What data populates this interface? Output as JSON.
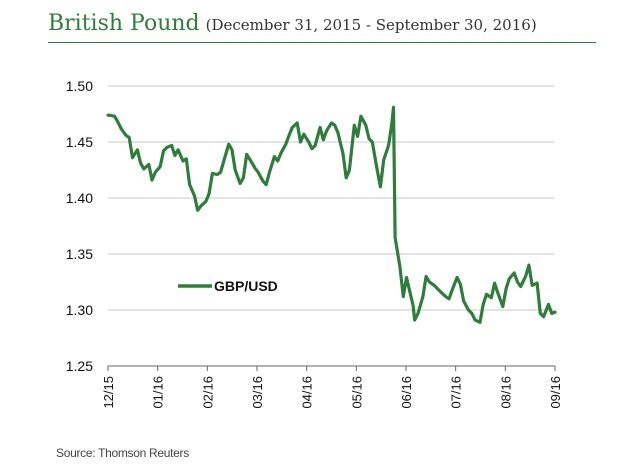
{
  "header": {
    "title": "British Pound",
    "subtitle": "(December 31, 2015 - September 30, 2016)"
  },
  "source": "Source: Thomson Reuters",
  "colors": {
    "series": "#2f7d3b",
    "title": "#2e7d3a",
    "grid": "#c8c8c8"
  },
  "chart_data": {
    "type": "line",
    "title": "",
    "xlabel": "",
    "ylabel": "",
    "ylim": [
      1.25,
      1.5
    ],
    "y_ticks": [
      "1.50",
      "1.45",
      "1.40",
      "1.35",
      "1.30",
      "1.25"
    ],
    "x_tick_labels": [
      "12/15",
      "01/16",
      "02/16",
      "03/16",
      "04/16",
      "05/16",
      "06/16",
      "07/16",
      "08/16",
      "09/16"
    ],
    "grid": "horizontal",
    "legend_position": "center-left",
    "series": [
      {
        "name": "GBP/USD",
        "x": [
          "2015-12-31",
          "2016-01-04",
          "2016-01-06",
          "2016-01-08",
          "2016-01-11",
          "2016-01-13",
          "2016-01-15",
          "2016-01-18",
          "2016-01-20",
          "2016-01-22",
          "2016-01-25",
          "2016-01-27",
          "2016-01-29",
          "2016-02-01",
          "2016-02-03",
          "2016-02-05",
          "2016-02-08",
          "2016-02-10",
          "2016-02-12",
          "2016-02-15",
          "2016-02-17",
          "2016-02-19",
          "2016-02-22",
          "2016-02-24",
          "2016-02-26",
          "2016-02-29",
          "2016-03-02",
          "2016-03-04",
          "2016-03-07",
          "2016-03-09",
          "2016-03-11",
          "2016-03-14",
          "2016-03-16",
          "2016-03-18",
          "2016-03-21",
          "2016-03-23",
          "2016-03-25",
          "2016-03-28",
          "2016-03-30",
          "2016-04-01",
          "2016-04-04",
          "2016-04-06",
          "2016-04-08",
          "2016-04-11",
          "2016-04-13",
          "2016-04-15",
          "2016-04-18",
          "2016-04-20",
          "2016-04-22",
          "2016-04-25",
          "2016-04-27",
          "2016-04-29",
          "2016-05-02",
          "2016-05-04",
          "2016-05-06",
          "2016-05-09",
          "2016-05-11",
          "2016-05-13",
          "2016-05-16",
          "2016-05-18",
          "2016-05-20",
          "2016-05-23",
          "2016-05-25",
          "2016-05-27",
          "2016-05-30",
          "2016-06-01",
          "2016-06-03",
          "2016-06-06",
          "2016-06-08",
          "2016-06-10",
          "2016-06-13",
          "2016-06-15",
          "2016-06-17",
          "2016-06-20",
          "2016-06-22",
          "2016-06-23",
          "2016-06-24",
          "2016-06-27",
          "2016-06-29",
          "2016-07-01",
          "2016-07-05",
          "2016-07-06",
          "2016-07-08",
          "2016-07-11",
          "2016-07-13",
          "2016-07-15",
          "2016-07-18",
          "2016-07-20",
          "2016-07-22",
          "2016-07-25",
          "2016-07-27",
          "2016-07-29",
          "2016-08-01",
          "2016-08-03",
          "2016-08-05",
          "2016-08-08",
          "2016-08-10",
          "2016-08-12",
          "2016-08-15",
          "2016-08-17",
          "2016-08-19",
          "2016-08-22",
          "2016-08-24",
          "2016-08-26",
          "2016-08-29",
          "2016-08-31",
          "2016-09-02",
          "2016-09-05",
          "2016-09-07",
          "2016-09-09",
          "2016-09-12",
          "2016-09-14",
          "2016-09-16",
          "2016-09-19",
          "2016-09-21",
          "2016-09-23",
          "2016-09-26",
          "2016-09-28",
          "2016-09-30"
        ],
        "y": [
          1.474,
          1.473,
          1.468,
          1.462,
          1.456,
          1.454,
          1.436,
          1.443,
          1.431,
          1.426,
          1.43,
          1.416,
          1.423,
          1.428,
          1.442,
          1.445,
          1.447,
          1.438,
          1.443,
          1.433,
          1.435,
          1.412,
          1.402,
          1.389,
          1.393,
          1.397,
          1.404,
          1.422,
          1.421,
          1.423,
          1.433,
          1.448,
          1.443,
          1.425,
          1.413,
          1.418,
          1.439,
          1.432,
          1.427,
          1.423,
          1.415,
          1.412,
          1.423,
          1.437,
          1.433,
          1.44,
          1.448,
          1.456,
          1.463,
          1.467,
          1.45,
          1.457,
          1.45,
          1.444,
          1.447,
          1.463,
          1.452,
          1.46,
          1.467,
          1.465,
          1.458,
          1.44,
          1.418,
          1.425,
          1.465,
          1.455,
          1.473,
          1.465,
          1.453,
          1.45,
          1.425,
          1.41,
          1.434,
          1.447,
          1.467,
          1.481,
          1.365,
          1.338,
          1.312,
          1.329,
          1.304,
          1.291,
          1.297,
          1.312,
          1.33,
          1.325,
          1.322,
          1.319,
          1.316,
          1.312,
          1.31,
          1.318,
          1.329,
          1.323,
          1.308,
          1.3,
          1.297,
          1.291,
          1.289,
          1.305,
          1.314,
          1.311,
          1.324,
          1.315,
          1.303,
          1.319,
          1.328,
          1.333,
          1.325,
          1.321,
          1.33,
          1.34,
          1.322,
          1.324,
          1.297,
          1.294,
          1.305,
          1.297,
          1.298
        ]
      }
    ]
  }
}
